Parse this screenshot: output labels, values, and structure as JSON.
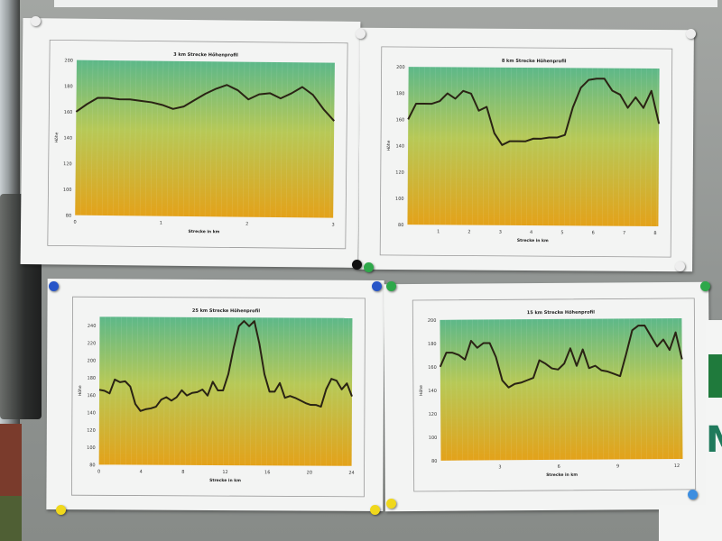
{
  "scene": "Bulletin board with four printed elevation profile charts",
  "pin_colors": {
    "white": "#f2f2f2",
    "green": "#2ea84a",
    "blue": "#2856c8",
    "yellow": "#f0d81c",
    "black": "#111111"
  },
  "chart_colors": {
    "top": "#5db889",
    "bottom": "#e3a21a",
    "line": "#2a2314"
  },
  "chart_data": [
    {
      "type": "area",
      "title": "3 km Strecke Höhenprofil",
      "xlabel": "Strecke in km",
      "ylabel": "Höhe",
      "xlim": [
        0,
        3
      ],
      "ylim": [
        80,
        200
      ],
      "xticks": [
        "0",
        "1",
        "2",
        "3"
      ],
      "yticks": [
        "80",
        "100",
        "120",
        "140",
        "160",
        "180",
        "200"
      ],
      "values": [
        160,
        166,
        171,
        171,
        170,
        170,
        169,
        168,
        166,
        163,
        165,
        170,
        175,
        179,
        182,
        178,
        171,
        175,
        176,
        172,
        176,
        181,
        175,
        164,
        155
      ]
    },
    {
      "type": "area",
      "title": "8 km Strecke Höhenprofil",
      "xlabel": "Strecke in km",
      "ylabel": "Höhe",
      "xlim": [
        0,
        8
      ],
      "ylim": [
        80,
        200
      ],
      "xticks": [
        "1",
        "2",
        "3",
        "4",
        "5",
        "6",
        "7",
        "8"
      ],
      "yticks": [
        "80",
        "100",
        "120",
        "140",
        "160",
        "180",
        "200"
      ],
      "values": [
        160,
        172,
        172,
        172,
        174,
        180,
        176,
        182,
        180,
        167,
        170,
        150,
        141,
        144,
        144,
        144,
        146,
        146,
        147,
        147,
        149,
        170,
        185,
        191,
        192,
        192,
        183,
        180,
        170,
        178,
        170,
        183,
        158
      ]
    },
    {
      "type": "area",
      "title": "25 km Strecke Höhenprofil",
      "xlabel": "Strecke in km",
      "ylabel": "Höhe",
      "xlim": [
        0,
        25
      ],
      "ylim": [
        80,
        250
      ],
      "xticks": [
        "0",
        "4",
        "8",
        "12",
        "16",
        "20",
        "24"
      ],
      "yticks": [
        "80",
        "100",
        "120",
        "140",
        "160",
        "180",
        "200",
        "220",
        "240"
      ],
      "values": [
        166,
        165,
        162,
        178,
        175,
        176,
        170,
        150,
        142,
        144,
        145,
        147,
        155,
        158,
        154,
        158,
        166,
        160,
        163,
        164,
        167,
        160,
        176,
        166,
        166,
        185,
        215,
        240,
        246,
        240,
        246,
        220,
        185,
        165,
        165,
        175,
        158,
        160,
        158,
        155,
        152,
        150,
        150,
        148,
        168,
        180,
        178,
        168,
        175,
        160
      ]
    },
    {
      "type": "area",
      "title": "15 km Strecke Höhenprofil",
      "xlabel": "Strecke in km",
      "ylabel": "Höhe",
      "xlim": [
        0,
        15
      ],
      "ylim": [
        80,
        200
      ],
      "xticks": [
        "3",
        "6",
        "9",
        "12"
      ],
      "yticks": [
        "80",
        "100",
        "120",
        "140",
        "160",
        "180",
        "200"
      ],
      "values": [
        160,
        172,
        172,
        170,
        166,
        182,
        176,
        180,
        180,
        168,
        148,
        142,
        145,
        146,
        148,
        150,
        165,
        162,
        158,
        157,
        162,
        175,
        160,
        174,
        158,
        160,
        156,
        155,
        153,
        151,
        170,
        190,
        194,
        194,
        185,
        176,
        182,
        173,
        188,
        165
      ]
    }
  ]
}
